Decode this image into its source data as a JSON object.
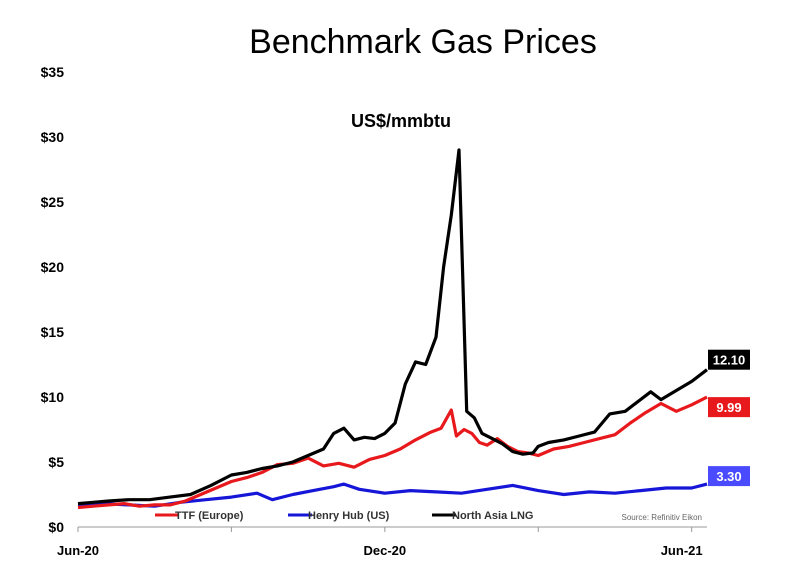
{
  "chart_data": {
    "type": "line",
    "title": "Benchmark Gas Prices",
    "subtitle": "US$/mmbtu",
    "source": "Source: Refinitiv Eikon",
    "y_ticks": [
      "$0",
      "$5",
      "$10",
      "$15",
      "$20",
      "$25",
      "$30",
      "$35"
    ],
    "ylim": [
      0,
      35
    ],
    "x_ticks": [
      "Jun-20",
      "Dec-20",
      "Jun-21"
    ],
    "x_tick_months": [
      0,
      6,
      12
    ],
    "xlim_months": [
      0,
      12.3
    ],
    "grid": false,
    "legend_position": "bottom",
    "colors": {
      "ttf": "#e8191c",
      "henry": "#1616d9",
      "lng": "#000000",
      "axis": "#999999",
      "henry_label_bg": "#4a4aff"
    },
    "series": [
      {
        "key": "ttf",
        "name": "TTF (Europe)",
        "end_label": "9.99",
        "x": [
          0,
          0.3,
          0.6,
          0.9,
          1.2,
          1.5,
          1.8,
          2.1,
          2.4,
          2.7,
          3.0,
          3.3,
          3.6,
          3.9,
          4.2,
          4.5,
          4.8,
          5.1,
          5.4,
          5.7,
          6.0,
          6.3,
          6.6,
          6.9,
          7.1,
          7.3,
          7.4,
          7.55,
          7.7,
          7.85,
          8.0,
          8.2,
          8.4,
          8.6,
          8.8,
          9.0,
          9.3,
          9.6,
          9.9,
          10.2,
          10.5,
          10.8,
          11.1,
          11.4,
          11.7,
          12.0,
          12.3
        ],
        "y": [
          1.5,
          1.6,
          1.7,
          1.8,
          1.6,
          1.7,
          1.7,
          2.0,
          2.5,
          3.0,
          3.5,
          3.8,
          4.2,
          4.8,
          4.9,
          5.3,
          4.7,
          4.9,
          4.6,
          5.2,
          5.5,
          6.0,
          6.7,
          7.3,
          7.6,
          9.0,
          7.0,
          7.5,
          7.2,
          6.5,
          6.3,
          6.8,
          6.2,
          5.8,
          5.7,
          5.5,
          6.0,
          6.2,
          6.5,
          6.8,
          7.1,
          8.0,
          8.8,
          9.5,
          8.9,
          9.4,
          9.99
        ]
      },
      {
        "key": "henry",
        "name": "Henry Hub (US)",
        "end_label": "3.30",
        "x": [
          0,
          0.5,
          1.0,
          1.5,
          2.0,
          2.5,
          3.0,
          3.5,
          3.8,
          4.2,
          4.6,
          5.0,
          5.2,
          5.5,
          6.0,
          6.5,
          7.0,
          7.5,
          8.0,
          8.5,
          9.0,
          9.5,
          10.0,
          10.5,
          11.0,
          11.5,
          12.0,
          12.3
        ],
        "y": [
          1.7,
          1.8,
          1.7,
          1.6,
          1.9,
          2.1,
          2.3,
          2.6,
          2.1,
          2.5,
          2.8,
          3.1,
          3.3,
          2.9,
          2.6,
          2.8,
          2.7,
          2.6,
          2.9,
          3.2,
          2.8,
          2.5,
          2.7,
          2.6,
          2.8,
          3.0,
          3.0,
          3.3
        ]
      },
      {
        "key": "lng",
        "name": "North Asia LNG",
        "end_label": "12.10",
        "x": [
          0,
          0.3,
          0.6,
          1.0,
          1.4,
          1.8,
          2.2,
          2.6,
          3.0,
          3.3,
          3.6,
          3.9,
          4.2,
          4.5,
          4.8,
          5.0,
          5.2,
          5.4,
          5.6,
          5.8,
          6.0,
          6.2,
          6.4,
          6.6,
          6.8,
          7.0,
          7.15,
          7.3,
          7.45,
          7.6,
          7.75,
          7.9,
          8.1,
          8.3,
          8.5,
          8.7,
          8.9,
          9.0,
          9.2,
          9.5,
          9.8,
          10.1,
          10.4,
          10.7,
          11.0,
          11.2,
          11.4,
          11.7,
          12.0,
          12.3
        ],
        "y": [
          1.8,
          1.9,
          2.0,
          2.1,
          2.1,
          2.3,
          2.5,
          3.2,
          4.0,
          4.2,
          4.5,
          4.7,
          5.0,
          5.5,
          6.0,
          7.2,
          7.6,
          6.7,
          6.9,
          6.8,
          7.2,
          8.0,
          11.0,
          12.7,
          12.5,
          14.6,
          20.0,
          24.0,
          29.0,
          8.9,
          8.4,
          7.2,
          6.8,
          6.4,
          5.8,
          5.6,
          5.7,
          6.2,
          6.5,
          6.7,
          7.0,
          7.3,
          8.7,
          8.9,
          9.8,
          10.4,
          9.8,
          10.5,
          11.2,
          12.1
        ]
      }
    ]
  }
}
